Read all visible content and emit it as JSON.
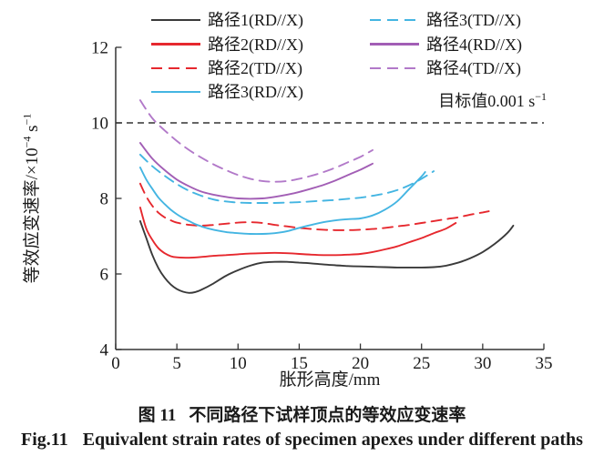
{
  "captions": {
    "cn_prefix": "图 11",
    "cn_text": "不同路径下试样顶点的等效应变速率",
    "en_prefix": "Fig.11",
    "en_text": "Equivalent strain rates of specimen apexes under different paths"
  },
  "colors": {
    "axis": "#333333",
    "text": "#1a1a1a",
    "background": "#ffffff",
    "black_series": "#3a3a3a",
    "red_series": "#e6282e",
    "cyan_series": "#44b5e2",
    "purple_series": "#a25eb5",
    "purple_dashed_series": "#b279c9"
  },
  "chart_data": {
    "type": "line",
    "xlabel": "胀形高度/mm",
    "ylabel": {
      "base": "等效应变速率/×10",
      "sup1": "−4",
      "mid": " s",
      "sup2": "−1"
    },
    "xlim": [
      0,
      35
    ],
    "ylim": [
      4,
      12
    ],
    "xticks": [
      0,
      5,
      10,
      15,
      20,
      25,
      30,
      35
    ],
    "yticks": [
      4,
      6,
      8,
      10,
      12
    ],
    "grid": false,
    "legend_position": "top",
    "target_line": {
      "y": 10,
      "style": "dashed",
      "color": "#333333",
      "label_base": "目标值0.001 s",
      "label_sup": "−1"
    },
    "series": [
      {
        "name": "路径1(RD//X)",
        "color": "#3a3a3a",
        "dash": false,
        "points": [
          [
            2,
            7.4
          ],
          [
            2.5,
            6.95
          ],
          [
            3,
            6.5
          ],
          [
            3.5,
            6.15
          ],
          [
            4,
            5.9
          ],
          [
            4.5,
            5.72
          ],
          [
            5,
            5.6
          ],
          [
            5.5,
            5.53
          ],
          [
            6,
            5.5
          ],
          [
            6.5,
            5.52
          ],
          [
            7,
            5.58
          ],
          [
            8,
            5.75
          ],
          [
            9,
            5.95
          ],
          [
            10,
            6.1
          ],
          [
            11,
            6.22
          ],
          [
            12,
            6.3
          ],
          [
            13,
            6.32
          ],
          [
            14,
            6.32
          ],
          [
            15,
            6.3
          ],
          [
            16,
            6.28
          ],
          [
            17,
            6.25
          ],
          [
            18,
            6.23
          ],
          [
            19,
            6.21
          ],
          [
            20,
            6.2
          ],
          [
            21,
            6.19
          ],
          [
            22,
            6.18
          ],
          [
            23,
            6.17
          ],
          [
            24,
            6.17
          ],
          [
            25,
            6.17
          ],
          [
            26,
            6.18
          ],
          [
            27,
            6.22
          ],
          [
            28,
            6.3
          ],
          [
            29,
            6.42
          ],
          [
            30,
            6.58
          ],
          [
            31,
            6.8
          ],
          [
            32,
            7.08
          ],
          [
            32.5,
            7.28
          ]
        ]
      },
      {
        "name": "路径2(RD//X)",
        "color": "#e6282e",
        "dash": false,
        "points": [
          [
            2,
            7.76
          ],
          [
            2.5,
            7.2
          ],
          [
            3,
            6.9
          ],
          [
            3.5,
            6.68
          ],
          [
            4,
            6.55
          ],
          [
            4.5,
            6.47
          ],
          [
            5,
            6.44
          ],
          [
            6,
            6.43
          ],
          [
            7,
            6.45
          ],
          [
            8,
            6.48
          ],
          [
            9,
            6.5
          ],
          [
            10,
            6.52
          ],
          [
            11,
            6.54
          ],
          [
            12,
            6.55
          ],
          [
            13,
            6.56
          ],
          [
            14,
            6.55
          ],
          [
            15,
            6.53
          ],
          [
            16,
            6.51
          ],
          [
            17,
            6.5
          ],
          [
            18,
            6.5
          ],
          [
            19,
            6.51
          ],
          [
            20,
            6.53
          ],
          [
            21,
            6.58
          ],
          [
            22,
            6.65
          ],
          [
            23,
            6.73
          ],
          [
            24,
            6.84
          ],
          [
            25,
            6.95
          ],
          [
            26,
            7.08
          ],
          [
            27,
            7.2
          ],
          [
            27.8,
            7.35
          ]
        ]
      },
      {
        "name": "路径2(TD//X)",
        "color": "#e6282e",
        "dash": true,
        "points": [
          [
            2,
            8.39
          ],
          [
            2.5,
            8.05
          ],
          [
            3,
            7.8
          ],
          [
            3.5,
            7.62
          ],
          [
            4,
            7.5
          ],
          [
            4.5,
            7.42
          ],
          [
            5,
            7.36
          ],
          [
            6,
            7.3
          ],
          [
            7,
            7.28
          ],
          [
            8,
            7.3
          ],
          [
            9,
            7.33
          ],
          [
            10,
            7.36
          ],
          [
            11,
            7.37
          ],
          [
            12,
            7.35
          ],
          [
            13,
            7.3
          ],
          [
            14,
            7.26
          ],
          [
            15,
            7.22
          ],
          [
            16,
            7.19
          ],
          [
            17,
            7.17
          ],
          [
            18,
            7.16
          ],
          [
            19,
            7.16
          ],
          [
            20,
            7.17
          ],
          [
            21,
            7.19
          ],
          [
            22,
            7.22
          ],
          [
            23,
            7.26
          ],
          [
            24,
            7.3
          ],
          [
            25,
            7.35
          ],
          [
            26,
            7.4
          ],
          [
            27,
            7.45
          ],
          [
            28,
            7.5
          ],
          [
            29,
            7.57
          ],
          [
            30,
            7.63
          ],
          [
            30.5,
            7.66
          ]
        ]
      },
      {
        "name": "路径3(RD//X)",
        "color": "#44b5e2",
        "dash": false,
        "points": [
          [
            2,
            8.82
          ],
          [
            2.5,
            8.5
          ],
          [
            3,
            8.25
          ],
          [
            3.5,
            8.02
          ],
          [
            4,
            7.85
          ],
          [
            4.5,
            7.7
          ],
          [
            5,
            7.58
          ],
          [
            5.5,
            7.48
          ],
          [
            6,
            7.4
          ],
          [
            6.5,
            7.32
          ],
          [
            7,
            7.26
          ],
          [
            7.5,
            7.21
          ],
          [
            8,
            7.17
          ],
          [
            9,
            7.11
          ],
          [
            10,
            7.08
          ],
          [
            11,
            7.06
          ],
          [
            12,
            7.06
          ],
          [
            13,
            7.08
          ],
          [
            14,
            7.13
          ],
          [
            15,
            7.22
          ],
          [
            16,
            7.3
          ],
          [
            17,
            7.37
          ],
          [
            18,
            7.42
          ],
          [
            19,
            7.45
          ],
          [
            20,
            7.47
          ],
          [
            21,
            7.55
          ],
          [
            22,
            7.7
          ],
          [
            23,
            7.92
          ],
          [
            24,
            8.25
          ],
          [
            25,
            8.58
          ],
          [
            25.3,
            8.7
          ]
        ]
      },
      {
        "name": "路径3(TD//X)",
        "color": "#44b5e2",
        "dash": true,
        "points": [
          [
            2,
            9.16
          ],
          [
            3,
            8.85
          ],
          [
            4,
            8.6
          ],
          [
            5,
            8.38
          ],
          [
            6,
            8.2
          ],
          [
            7,
            8.07
          ],
          [
            8,
            7.97
          ],
          [
            9,
            7.92
          ],
          [
            10,
            7.89
          ],
          [
            11,
            7.88
          ],
          [
            12,
            7.88
          ],
          [
            13,
            7.88
          ],
          [
            14,
            7.89
          ],
          [
            15,
            7.9
          ],
          [
            16,
            7.92
          ],
          [
            17,
            7.94
          ],
          [
            18,
            7.96
          ],
          [
            19,
            7.99
          ],
          [
            20,
            8.02
          ],
          [
            21,
            8.07
          ],
          [
            22,
            8.13
          ],
          [
            23,
            8.22
          ],
          [
            24,
            8.35
          ],
          [
            25,
            8.52
          ],
          [
            26,
            8.72
          ]
        ]
      },
      {
        "name": "路径4(RD//X)",
        "color": "#a25eb5",
        "dash": false,
        "points": [
          [
            2,
            9.47
          ],
          [
            3,
            9.05
          ],
          [
            4,
            8.75
          ],
          [
            5,
            8.5
          ],
          [
            6,
            8.32
          ],
          [
            7,
            8.18
          ],
          [
            8,
            8.1
          ],
          [
            9,
            8.04
          ],
          [
            10,
            8.0
          ],
          [
            11,
            7.99
          ],
          [
            12,
            8.0
          ],
          [
            13,
            8.04
          ],
          [
            14,
            8.1
          ],
          [
            15,
            8.17
          ],
          [
            16,
            8.26
          ],
          [
            17,
            8.36
          ],
          [
            18,
            8.48
          ],
          [
            19,
            8.62
          ],
          [
            20,
            8.76
          ],
          [
            21,
            8.92
          ]
        ]
      },
      {
        "name": "路径4(TD//X)",
        "color": "#b279c9",
        "dash": true,
        "points": [
          [
            2,
            10.6
          ],
          [
            2.5,
            10.35
          ],
          [
            3,
            10.12
          ],
          [
            3.5,
            9.95
          ],
          [
            4,
            9.8
          ],
          [
            5,
            9.52
          ],
          [
            6,
            9.28
          ],
          [
            7,
            9.08
          ],
          [
            8,
            8.9
          ],
          [
            9,
            8.75
          ],
          [
            10,
            8.62
          ],
          [
            11,
            8.52
          ],
          [
            12,
            8.46
          ],
          [
            13,
            8.44
          ],
          [
            14,
            8.46
          ],
          [
            15,
            8.52
          ],
          [
            16,
            8.6
          ],
          [
            17,
            8.7
          ],
          [
            18,
            8.82
          ],
          [
            19,
            8.96
          ],
          [
            20,
            9.1
          ],
          [
            21,
            9.28
          ]
        ]
      }
    ]
  }
}
